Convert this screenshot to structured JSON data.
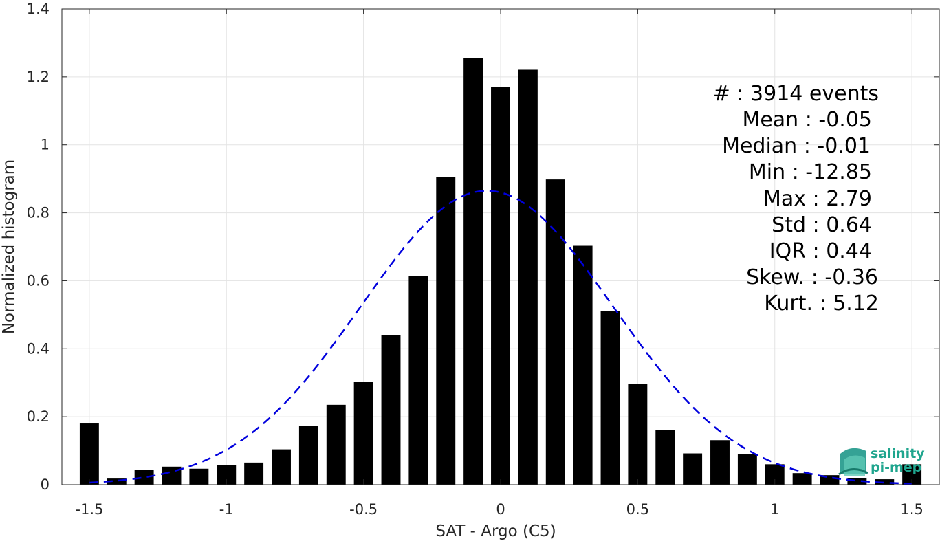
{
  "chart_data": {
    "type": "bar",
    "xlabel": "SAT - Argo (C5)",
    "ylabel": "Normalized histogram",
    "xlim": [
      -1.6,
      1.6
    ],
    "ylim": [
      0,
      1.4
    ],
    "xticks": [
      "-1.5",
      "-1",
      "-0.5",
      "0",
      "0.5",
      "1",
      "1.5"
    ],
    "xtick_values": [
      -1.5,
      -1,
      -0.5,
      0,
      0.5,
      1,
      1.5
    ],
    "yticks": [
      "0",
      "0.2",
      "0.4",
      "0.6",
      "0.8",
      "1",
      "1.2",
      "1.4"
    ],
    "ytick_values": [
      0,
      0.2,
      0.4,
      0.6,
      0.8,
      1,
      1.2,
      1.4
    ],
    "grid": true,
    "bin_width": 0.1,
    "bar_color": "#000000",
    "bars": [
      {
        "x": -1.5,
        "y": 0.18
      },
      {
        "x": -1.4,
        "y": 0.018
      },
      {
        "x": -1.3,
        "y": 0.043
      },
      {
        "x": -1.2,
        "y": 0.053
      },
      {
        "x": -1.1,
        "y": 0.047
      },
      {
        "x": -1.0,
        "y": 0.057
      },
      {
        "x": -0.9,
        "y": 0.065
      },
      {
        "x": -0.8,
        "y": 0.104
      },
      {
        "x": -0.7,
        "y": 0.173
      },
      {
        "x": -0.6,
        "y": 0.235
      },
      {
        "x": -0.5,
        "y": 0.302
      },
      {
        "x": -0.4,
        "y": 0.44
      },
      {
        "x": -0.3,
        "y": 0.613
      },
      {
        "x": -0.2,
        "y": 0.906
      },
      {
        "x": -0.1,
        "y": 1.255
      },
      {
        "x": 0.0,
        "y": 1.171
      },
      {
        "x": 0.1,
        "y": 1.221
      },
      {
        "x": 0.2,
        "y": 0.898
      },
      {
        "x": 0.3,
        "y": 0.703
      },
      {
        "x": 0.4,
        "y": 0.51
      },
      {
        "x": 0.5,
        "y": 0.296
      },
      {
        "x": 0.6,
        "y": 0.16
      },
      {
        "x": 0.7,
        "y": 0.092
      },
      {
        "x": 0.8,
        "y": 0.131
      },
      {
        "x": 0.9,
        "y": 0.089
      },
      {
        "x": 1.0,
        "y": 0.06
      },
      {
        "x": 1.1,
        "y": 0.034
      },
      {
        "x": 1.2,
        "y": 0.028
      },
      {
        "x": 1.3,
        "y": 0.02
      },
      {
        "x": 1.4,
        "y": 0.016
      },
      {
        "x": 1.5,
        "y": 0.06
      }
    ],
    "fit_curve": {
      "type": "gaussian",
      "mean": -0.05,
      "std": 0.46,
      "peak": 0.865,
      "x_range": [
        -1.5,
        1.5
      ],
      "color": "#0000dd",
      "style": "dashed"
    }
  },
  "stats": {
    "lines": [
      "#  : 3914 events",
      "Mean : -0.05",
      "Median : -0.01",
      "Min : -12.85",
      "Max : 2.79",
      "Std : 0.64",
      "IQR : 0.44",
      "Skew. : -0.36",
      "Kurt. : 5.12"
    ]
  },
  "logo": {
    "line1": "salinity",
    "line2": "pi-mep",
    "color": "#1fa58e"
  }
}
